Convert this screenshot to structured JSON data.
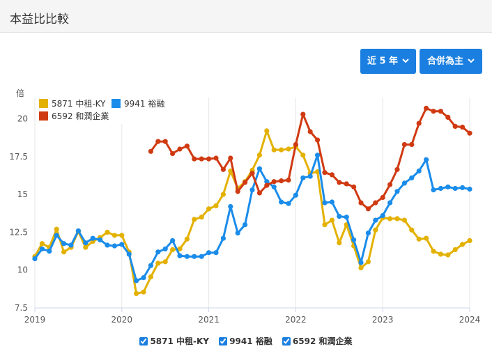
{
  "page": {
    "title": "本益比比較"
  },
  "controls": {
    "period_label": "近 5 年",
    "mode_label": "合併為主"
  },
  "colors": {
    "accent": "#1a7fe0",
    "series_1": "#e3b100",
    "series_2": "#1a8cea",
    "series_3": "#d03a12"
  },
  "chart_data": {
    "type": "line",
    "ylabel": "倍",
    "ylim": [
      7.5,
      21.5
    ],
    "yticks": [
      7.5,
      10,
      12.5,
      15,
      17.5,
      20
    ],
    "xlim": [
      2019,
      2024
    ],
    "xticks": [
      2019,
      2020,
      2021,
      2022,
      2023,
      2024
    ],
    "grid": "vertical lines at year ticks",
    "legend_position": "top-left",
    "series": [
      {
        "name": "5871 中租-KY",
        "color": "#e3b100",
        "x_start": 2019,
        "step_months": 1,
        "values": [
          10.9,
          11.75,
          11.5,
          12.7,
          11.2,
          11.5,
          12.55,
          11.5,
          11.9,
          12.15,
          12.5,
          12.3,
          12.3,
          11.2,
          8.45,
          8.55,
          9.55,
          10.45,
          10.55,
          11.35,
          11.4,
          12.05,
          13.35,
          13.5,
          14.05,
          14.25,
          15.0,
          16.55,
          15.4,
          15.85,
          16.6,
          17.6,
          19.2,
          17.95,
          17.95,
          18.0,
          18.15,
          17.6,
          16.4,
          16.5,
          13.0,
          13.3,
          11.8,
          13.0,
          11.6,
          10.15,
          10.55,
          12.65,
          13.45,
          13.4,
          13.4,
          13.3,
          12.65,
          12.05,
          12.1,
          11.25,
          11.05,
          11.0,
          11.35,
          11.7,
          11.95
        ]
      },
      {
        "name": "9941 裕融",
        "color": "#1a8cea",
        "x_start": 2019,
        "step_months": 1,
        "values": [
          10.75,
          11.4,
          11.25,
          12.3,
          11.75,
          11.65,
          12.6,
          11.8,
          12.1,
          12.0,
          11.65,
          11.6,
          11.7,
          11.05,
          9.3,
          9.5,
          10.3,
          11.2,
          11.4,
          11.95,
          10.95,
          10.9,
          10.9,
          10.9,
          11.15,
          11.15,
          12.1,
          14.2,
          12.45,
          13.0,
          15.3,
          16.7,
          15.85,
          15.5,
          14.5,
          14.4,
          14.95,
          16.1,
          16.2,
          17.6,
          14.45,
          14.5,
          13.55,
          13.5,
          12.0,
          10.5,
          12.45,
          13.3,
          13.6,
          14.45,
          15.2,
          15.75,
          16.1,
          16.55,
          17.3,
          15.3,
          15.4,
          15.5,
          15.4,
          15.45,
          15.35
        ]
      },
      {
        "name": "6592 和潤企業",
        "color": "#d03a12",
        "x_start": 2020.333,
        "step_months": 1,
        "values": [
          17.85,
          18.5,
          18.5,
          17.7,
          18.0,
          18.2,
          17.35,
          17.35,
          17.35,
          17.4,
          16.65,
          17.4,
          15.2,
          15.8,
          16.4,
          15.1,
          15.6,
          15.85,
          15.9,
          15.95,
          18.3,
          20.3,
          19.15,
          18.6,
          16.45,
          16.3,
          15.8,
          15.7,
          15.5,
          14.45,
          14.05,
          14.45,
          14.8,
          15.65,
          16.65,
          18.3,
          18.3,
          19.7,
          20.7,
          20.5,
          20.5,
          20.1,
          19.5,
          19.45,
          19.05
        ]
      }
    ]
  }
}
